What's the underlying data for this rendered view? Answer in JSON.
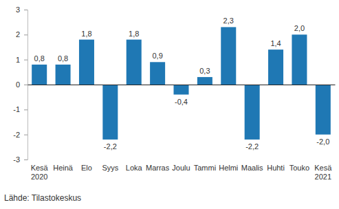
{
  "chart_data": {
    "type": "bar",
    "categories": [
      "Kesä 2020",
      "Heinä",
      "Elo",
      "Syys",
      "Loka",
      "Marras",
      "Joulu",
      "Tammi",
      "Helmi",
      "Maalis",
      "Huhti",
      "Touko",
      "Kesä 2021"
    ],
    "values": [
      0.8,
      0.8,
      1.8,
      -2.2,
      1.8,
      0.9,
      -0.4,
      0.3,
      2.3,
      -2.2,
      1.4,
      2.0,
      -2.0
    ],
    "value_labels": [
      "0,8",
      "0,8",
      "1,8",
      "-2,2",
      "1,8",
      "0,9",
      "-0,4",
      "0,3",
      "2,3",
      "-2,2",
      "1,4",
      "2,0",
      "-2,0"
    ],
    "color": "#1f78b4",
    "ylim": [
      -3,
      3
    ],
    "yticks": [
      -3,
      -2,
      -1,
      0,
      1,
      2,
      3
    ],
    "grid": false,
    "data_labels": true,
    "source": "Lähde: Tilastokeskus"
  }
}
